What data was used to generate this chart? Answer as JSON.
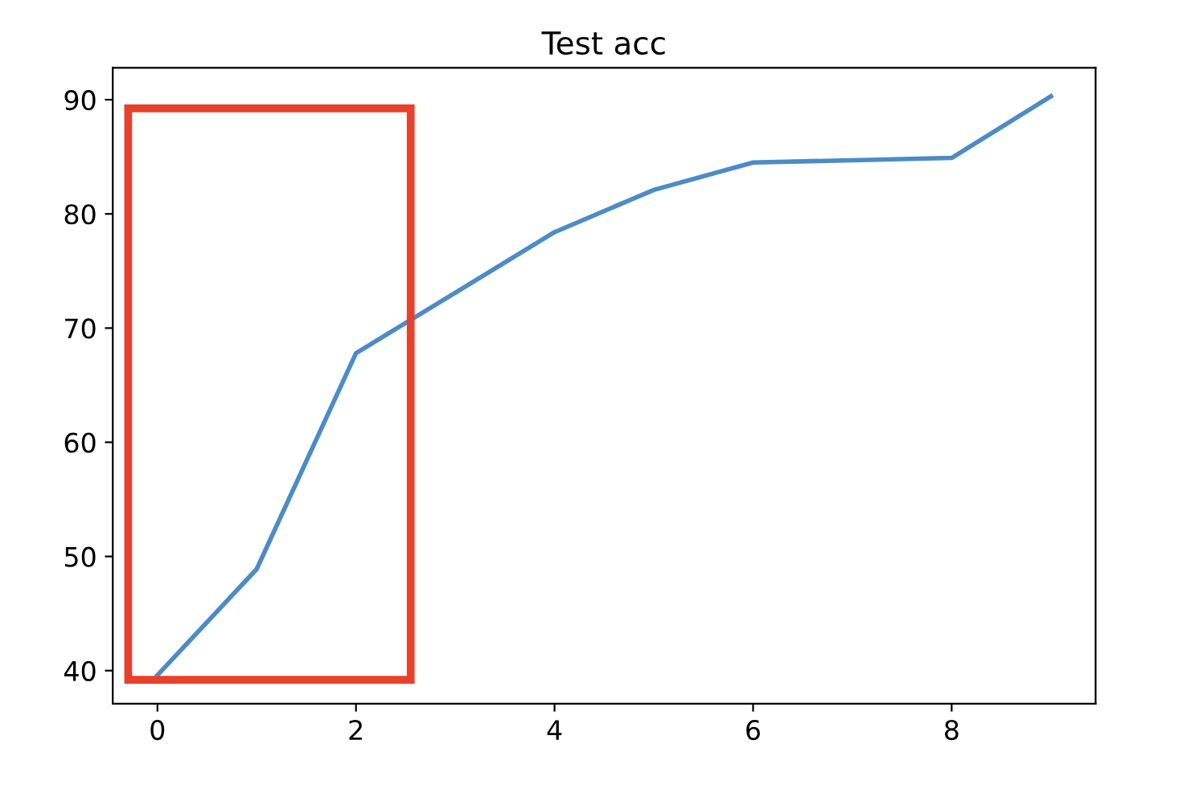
{
  "chart_data": {
    "type": "line",
    "title": "Test acc",
    "x": [
      0,
      1,
      2,
      3,
      4,
      5,
      6,
      7,
      8,
      9
    ],
    "series": [
      {
        "color": "#4c8bc6",
        "values": [
          39.6,
          48.9,
          67.8,
          73.1,
          78.4,
          82.1,
          84.5,
          84.7,
          84.9,
          90.3
        ]
      }
    ],
    "xlim": [
      -0.45,
      9.45
    ],
    "xticks": [
      0,
      2,
      4,
      6,
      8
    ],
    "ylim": [
      37.1,
      92.8
    ],
    "yticks": [
      40,
      50,
      60,
      70,
      80,
      90
    ],
    "grid": false,
    "legend": false,
    "marker": "none",
    "line_style": "solid"
  }
}
